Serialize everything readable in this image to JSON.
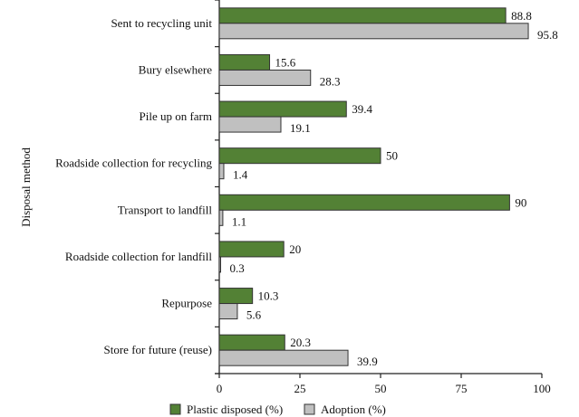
{
  "chart_data": {
    "type": "bar",
    "orientation": "horizontal",
    "title": "",
    "ylabel": "Disposal method",
    "xlabel": "",
    "xlim": [
      0,
      100
    ],
    "xticks": [
      "0",
      "25",
      "50",
      "75",
      "100"
    ],
    "categories": [
      "Sent to recycling unit",
      "Bury elsewhere",
      "Pile up on farm",
      "Roadside collection for recycling",
      "Transport to landfill",
      "Roadside collection for landfill",
      "Repurpose",
      "Store for future (reuse)"
    ],
    "series": [
      {
        "name": "Plastic disposed (%)",
        "color": "#538135",
        "values": [
          88.8,
          15.6,
          39.4,
          50,
          90,
          20,
          10.3,
          20.3
        ],
        "labels": [
          "88.8",
          "15.6",
          "39.4",
          "50",
          "90",
          "20",
          "10.3",
          "20.3"
        ]
      },
      {
        "name": "Adoption (%)",
        "color": "#c0c0c0",
        "values": [
          95.8,
          28.3,
          19.1,
          1.4,
          1.1,
          0.3,
          5.6,
          39.9
        ],
        "labels": [
          "95.8",
          "28.3",
          "19.1",
          "1.4",
          "1.1",
          "0.3",
          "5.6",
          "39.9"
        ]
      }
    ],
    "grid": false,
    "legend": "bottom"
  }
}
